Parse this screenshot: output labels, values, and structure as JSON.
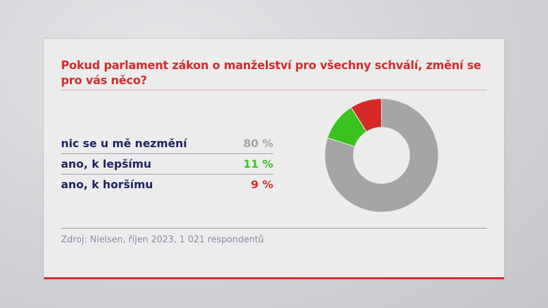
{
  "title": "Pokud parlament zákon o manželství pro všechny schválí, změní se pro vás něco?",
  "source": "Zdroj: Nielsen, říjen 2023, 1 021 respondentů",
  "colors": {
    "accent": "#d42a2a",
    "label": "#1e2363"
  },
  "chart_data": {
    "type": "pie",
    "donut": true,
    "categories": [
      "nic se u mě nezmění",
      "ano, k lepšímu",
      "ano, k horšímu"
    ],
    "values": [
      80,
      11,
      9
    ],
    "value_labels": [
      "80 %",
      "11 %",
      "9 %"
    ],
    "colors": [
      "#a5a5a5",
      "#3cc21e",
      "#d42a2a"
    ],
    "value_label_colors": [
      "#a5a5a5",
      "#3cc21e",
      "#d42a2a"
    ],
    "legend": "left"
  }
}
